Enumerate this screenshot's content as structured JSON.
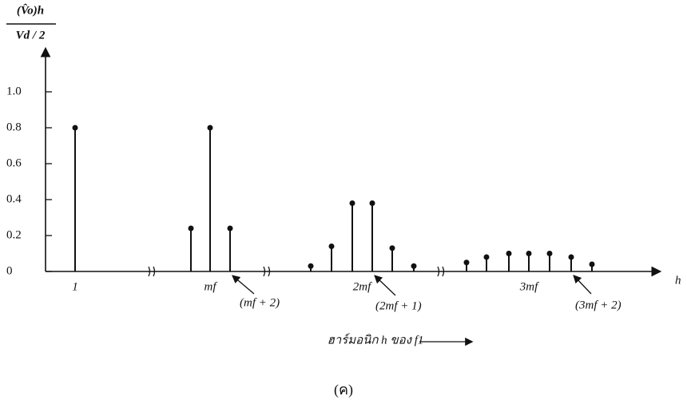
{
  "chart_data": {
    "type": "stem",
    "y_label": {
      "numerator": "(V̂o)h",
      "denominator": "Vd / 2"
    },
    "x_axis_end_label": "h",
    "x_label": "ฮาร์มอนิก h ของ f1",
    "caption": "(ค)",
    "categories": [
      "1",
      null,
      "mf",
      null,
      null,
      null,
      null,
      "2mf",
      null,
      null,
      null,
      null,
      null,
      null,
      "3mf",
      null,
      null,
      null
    ],
    "values": [
      0.8,
      0.24,
      0.8,
      0.24,
      0.03,
      0.14,
      0.38,
      0,
      0.38,
      0.13,
      0.03,
      0.05,
      0.08,
      0.1,
      0.1,
      0.1,
      0.08,
      0.04
    ],
    "annotations": [
      {
        "text": "(mf + 2)",
        "target": 3
      },
      {
        "text": "(2mf + 1)",
        "target": 8
      },
      {
        "text": "(3mf + 2)",
        "target": 16
      }
    ],
    "color": "#111111",
    "ylim": [
      0,
      1.2
    ],
    "yticks": [
      0,
      0.2,
      0.4,
      0.6,
      0.8,
      {
        "value": 1,
        "label": "1.0"
      }
    ]
  }
}
